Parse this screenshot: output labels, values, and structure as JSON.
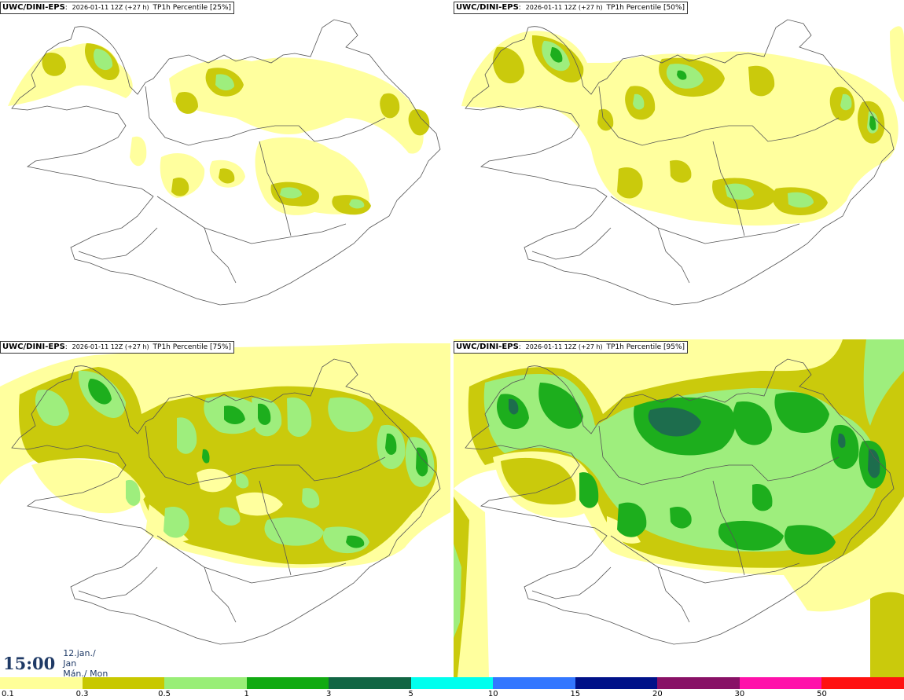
{
  "panels": [
    {
      "model": "UWC/DINI-EPS",
      "run": "2026-01-11 12Z (+27 h)",
      "field": "TP1h Percentile [25%]"
    },
    {
      "model": "UWC/DINI-EPS",
      "run": "2026-01-11 12Z (+27 h)",
      "field": "TP1h Percentile [50%]"
    },
    {
      "model": "UWC/DINI-EPS",
      "run": "2026-01-11 12Z (+27 h)",
      "field": "TP1h Percentile [75%]"
    },
    {
      "model": "UWC/DINI-EPS",
      "run": "2026-01-11 12Z (+27 h)",
      "field": "TP1h Percentile [95%]"
    }
  ],
  "valid_time": {
    "time": "15:00",
    "date": "12.jan./ Jan",
    "weekday": "Mán./ Mon"
  },
  "legend": {
    "labels": [
      "0.1",
      "0.3",
      "0.5",
      "1",
      "3",
      "5",
      "10",
      "15",
      "20",
      "30",
      "50"
    ],
    "colors": [
      "#ffff99",
      "#c8c800",
      "#99ee77",
      "#11aa11",
      "#116644",
      "#00ffee",
      "#3377ff",
      "#001188",
      "#881166",
      "#ff11aa",
      "#ff1111"
    ]
  }
}
